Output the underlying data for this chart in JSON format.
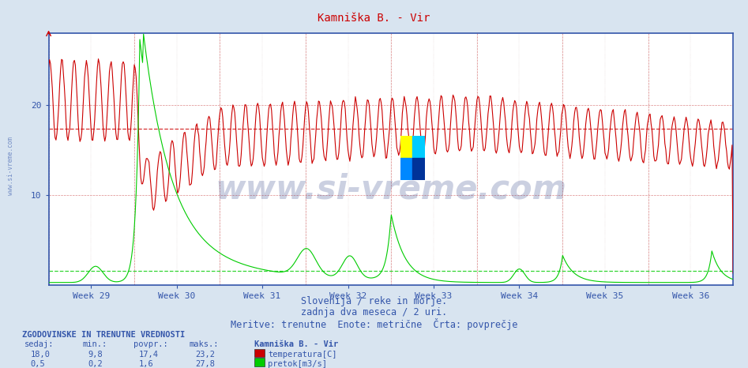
{
  "title": "Kamniška B. - Vir",
  "subtitle1": "Slovenija / reke in morje.",
  "subtitle2": "zadnja dva meseca / 2 uri.",
  "subtitle3": "Meritve: trenutne  Enote: metrične  Črta: povprečje",
  "bg_color": "#d8e4f0",
  "plot_bg_color": "#ffffff",
  "grid_color_dotted": "#cc9999",
  "grid_color_solid": "#aaaacc",
  "temp_color": "#cc0000",
  "flow_color": "#00cc00",
  "axis_color": "#3355aa",
  "text_color": "#3355aa",
  "title_color": "#cc0000",
  "watermark": "www.si-vreme.com",
  "xlabel_weeks": [
    "Week 29",
    "Week 30",
    "Week 31",
    "Week 32",
    "Week 33",
    "Week 34",
    "Week 35",
    "Week 36"
  ],
  "temp_avg": 17.4,
  "flow_avg": 1.6,
  "temp_min": 9.8,
  "temp_max": 23.2,
  "temp_current": 18.0,
  "flow_min": 0.2,
  "flow_max": 27.8,
  "flow_current": 0.5,
  "y_max": 28.0,
  "n_points": 744,
  "n_weeks": 8,
  "legend_title": "Kamniška B. - Vir",
  "stat_header": "ZGODOVINSKE IN TRENUTNE VREDNOSTI",
  "stat_col1": "sedaj:",
  "stat_col2": "min.:",
  "stat_col3": "povpr.:",
  "stat_col4": "maks.:",
  "temp_label": "temperatura[C]",
  "flow_label": "pretok[m3/s]",
  "logo_colors": [
    "#ffff00",
    "#00ccff",
    "#0088ff",
    "#003388"
  ]
}
